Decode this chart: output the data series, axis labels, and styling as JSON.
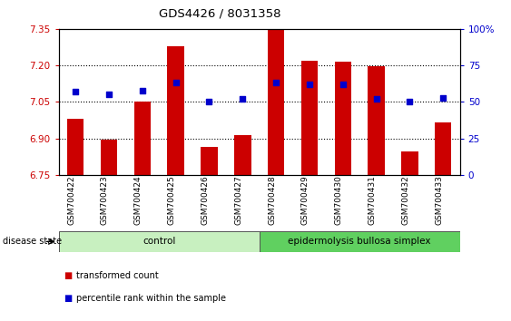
{
  "title": "GDS4426 / 8031358",
  "samples": [
    "GSM700422",
    "GSM700423",
    "GSM700424",
    "GSM700425",
    "GSM700426",
    "GSM700427",
    "GSM700428",
    "GSM700429",
    "GSM700430",
    "GSM700431",
    "GSM700432",
    "GSM700433"
  ],
  "bar_values": [
    6.98,
    6.895,
    7.05,
    7.28,
    6.865,
    6.915,
    7.345,
    7.22,
    7.215,
    7.195,
    6.845,
    6.965
  ],
  "blue_values": [
    57,
    55,
    58,
    63,
    50,
    52,
    63,
    62,
    62,
    52,
    50,
    53
  ],
  "ylim_left": [
    6.75,
    7.35
  ],
  "ylim_right": [
    0,
    100
  ],
  "yticks_left": [
    6.75,
    6.9,
    7.05,
    7.2,
    7.35
  ],
  "yticks_right": [
    0,
    25,
    50,
    75,
    100
  ],
  "bar_color": "#cc0000",
  "blue_color": "#0000cc",
  "control_color": "#c8f0c0",
  "disease_color": "#60d060",
  "control_label": "control",
  "disease_label": "epidermolysis bullosa simplex",
  "group_label": "disease state",
  "legend_bar": "transformed count",
  "legend_blue": "percentile rank within the sample",
  "bar_width": 0.5,
  "ytick_label_color_left": "#cc0000",
  "ytick_label_color_right": "#0000cc",
  "percent_suffix": "%",
  "n_control": 6,
  "n_disease": 6
}
